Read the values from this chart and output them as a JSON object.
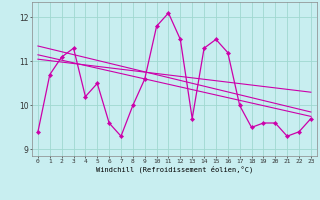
{
  "xlabel": "Windchill (Refroidissement éolien,°C)",
  "ylabel": "",
  "background_color": "#c8eef0",
  "grid_color": "#a0d8d0",
  "line_color": "#cc00aa",
  "marker_color": "#cc00aa",
  "ylim": [
    8.85,
    12.35
  ],
  "xlim": [
    -0.5,
    23.5
  ],
  "yticks": [
    9,
    10,
    11,
    12
  ],
  "xticks": [
    0,
    1,
    2,
    3,
    4,
    5,
    6,
    7,
    8,
    9,
    10,
    11,
    12,
    13,
    14,
    15,
    16,
    17,
    18,
    19,
    20,
    21,
    22,
    23
  ],
  "hours": [
    0,
    1,
    2,
    3,
    4,
    5,
    6,
    7,
    8,
    9,
    10,
    11,
    12,
    13,
    14,
    15,
    16,
    17,
    18,
    19,
    20,
    21,
    22,
    23
  ],
  "windchill": [
    9.4,
    10.7,
    11.1,
    11.3,
    10.2,
    10.5,
    9.6,
    9.3,
    10.0,
    10.6,
    11.8,
    12.1,
    11.5,
    9.7,
    11.3,
    11.5,
    11.2,
    10.0,
    9.5,
    9.6,
    9.6,
    9.3,
    9.4,
    9.7
  ],
  "trend1_x": [
    0,
    23
  ],
  "trend1_y": [
    11.35,
    9.85
  ],
  "trend2_x": [
    0,
    23
  ],
  "trend2_y": [
    11.05,
    10.3
  ],
  "trend3_x": [
    0,
    23
  ],
  "trend3_y": [
    11.15,
    9.75
  ]
}
